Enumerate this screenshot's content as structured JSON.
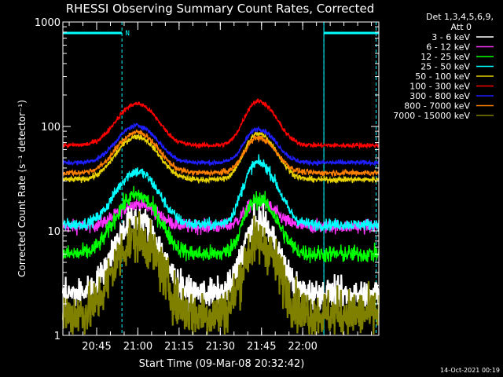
{
  "chart_data": {
    "type": "line",
    "title": "RHESSI Observing Summary Count Rates, Corrected",
    "xlabel": "Start Time (09-Mar-08 20:32:42)",
    "ylabel": "Corrected Count Rate (s⁻¹ detector⁻¹)",
    "y_scale": "log",
    "ylim": [
      1,
      1000
    ],
    "x_unit": "minutes after 20:32:42",
    "xlim": [
      0,
      115
    ],
    "x_ticks": [
      {
        "t": 12.3,
        "label": "20:45"
      },
      {
        "t": 27.3,
        "label": "21:00"
      },
      {
        "t": 42.3,
        "label": "21:15"
      },
      {
        "t": 57.3,
        "label": "21:30"
      },
      {
        "t": 72.3,
        "label": "21:45"
      },
      {
        "t": 87.3,
        "label": "22:00"
      }
    ],
    "y_ticks": [
      {
        "v": 1,
        "label": "1"
      },
      {
        "v": 10,
        "label": "10"
      },
      {
        "v": 100,
        "label": "100"
      },
      {
        "v": 1000,
        "label": "1000"
      }
    ],
    "legend_header": [
      "Det 1,3,4,5,6,9,",
      "Att 0"
    ],
    "legend_position": "right",
    "night_marker_label": "N",
    "night_bars": [
      [
        0,
        21.5
      ],
      [
        95,
        115
      ]
    ],
    "saa_dashed_lines": [
      21.5,
      95,
      114
    ],
    "series": [
      {
        "name": "3 - 6 keV",
        "color": "#ffffff",
        "base": 2.5,
        "peak1": 13,
        "peak2": 12,
        "noise": 0.15
      },
      {
        "name": "6 - 12 keV",
        "color": "#ff33ff",
        "base": 11,
        "peak1": 18,
        "peak2": 19,
        "noise": 0.07
      },
      {
        "name": "12 - 25 keV",
        "color": "#00ff00",
        "base": 6,
        "peak1": 22,
        "peak2": 20,
        "noise": 0.09
      },
      {
        "name": "25 - 50 keV",
        "color": "#00ffff",
        "base": 11.5,
        "peak1": 37,
        "peak2": 45,
        "noise": 0.06
      },
      {
        "name": "50 - 100 keV",
        "color": "#e8d200",
        "base": 31,
        "peak1": 80,
        "peak2": 85,
        "noise": 0.03
      },
      {
        "name": "100 - 300 keV",
        "color": "#ff0000",
        "base": 66,
        "peak1": 165,
        "peak2": 175,
        "noise": 0.025
      },
      {
        "name": "300 - 800 keV",
        "color": "#1e1eff",
        "base": 45,
        "peak1": 102,
        "peak2": 95,
        "noise": 0.025
      },
      {
        "name": "800 - 7000 keV",
        "color": "#ff7f00",
        "base": 36,
        "peak1": 88,
        "peak2": 78,
        "noise": 0.03
      },
      {
        "name": "7000 - 15000 keV",
        "color": "#808000",
        "base": 1.6,
        "peak1": 8.5,
        "peak2": 8,
        "noise": 0.25
      }
    ],
    "peaks_time": [
      27,
      71
    ]
  },
  "footer": {
    "date_stamp": "14-Oct-2021 00:19"
  }
}
